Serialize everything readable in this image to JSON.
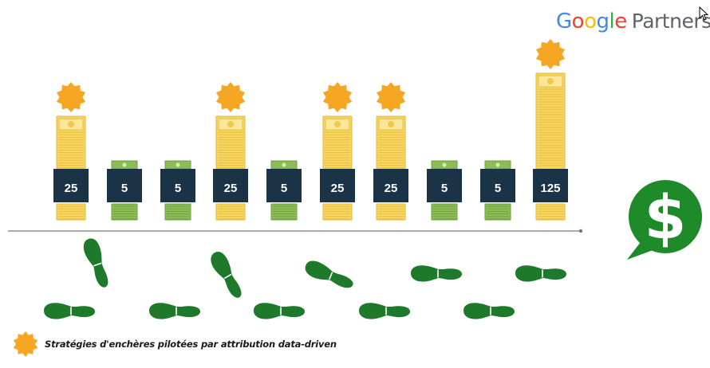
{
  "logo": {
    "letters": [
      "G",
      "o",
      "o",
      "g",
      "l",
      "e"
    ],
    "partners": "Partners"
  },
  "columns": [
    {
      "value": 25,
      "label": "25",
      "type": "gold",
      "badge": true
    },
    {
      "value": 5,
      "label": "5",
      "type": "green",
      "badge": false
    },
    {
      "value": 5,
      "label": "5",
      "type": "green",
      "badge": false
    },
    {
      "value": 25,
      "label": "25",
      "type": "gold",
      "badge": true
    },
    {
      "value": 5,
      "label": "5",
      "type": "green",
      "badge": false
    },
    {
      "value": 25,
      "label": "25",
      "type": "gold",
      "badge": true
    },
    {
      "value": 25,
      "label": "25",
      "type": "gold",
      "badge": true
    },
    {
      "value": 5,
      "label": "5",
      "type": "green",
      "badge": false
    },
    {
      "value": 5,
      "label": "5",
      "type": "green",
      "badge": false
    },
    {
      "value": 125,
      "label": "125",
      "type": "gold",
      "badge": true
    }
  ],
  "legend": {
    "text": "Stratégies d'enchères pilotées par attribution data-driven",
    "icon": "gold-badge-icon"
  },
  "colors": {
    "label_box": "#1b3347",
    "gold": "#f7d560",
    "gold_dark": "#e2b93a",
    "cash_green": "#8bbd55",
    "footprint": "#1e7a2a",
    "badge": "#f5a623",
    "dollar_bubble": "#1f8a2a"
  },
  "dollar_bubble": {
    "symbol": "$",
    "icon": "dollar-speech-bubble-icon"
  }
}
